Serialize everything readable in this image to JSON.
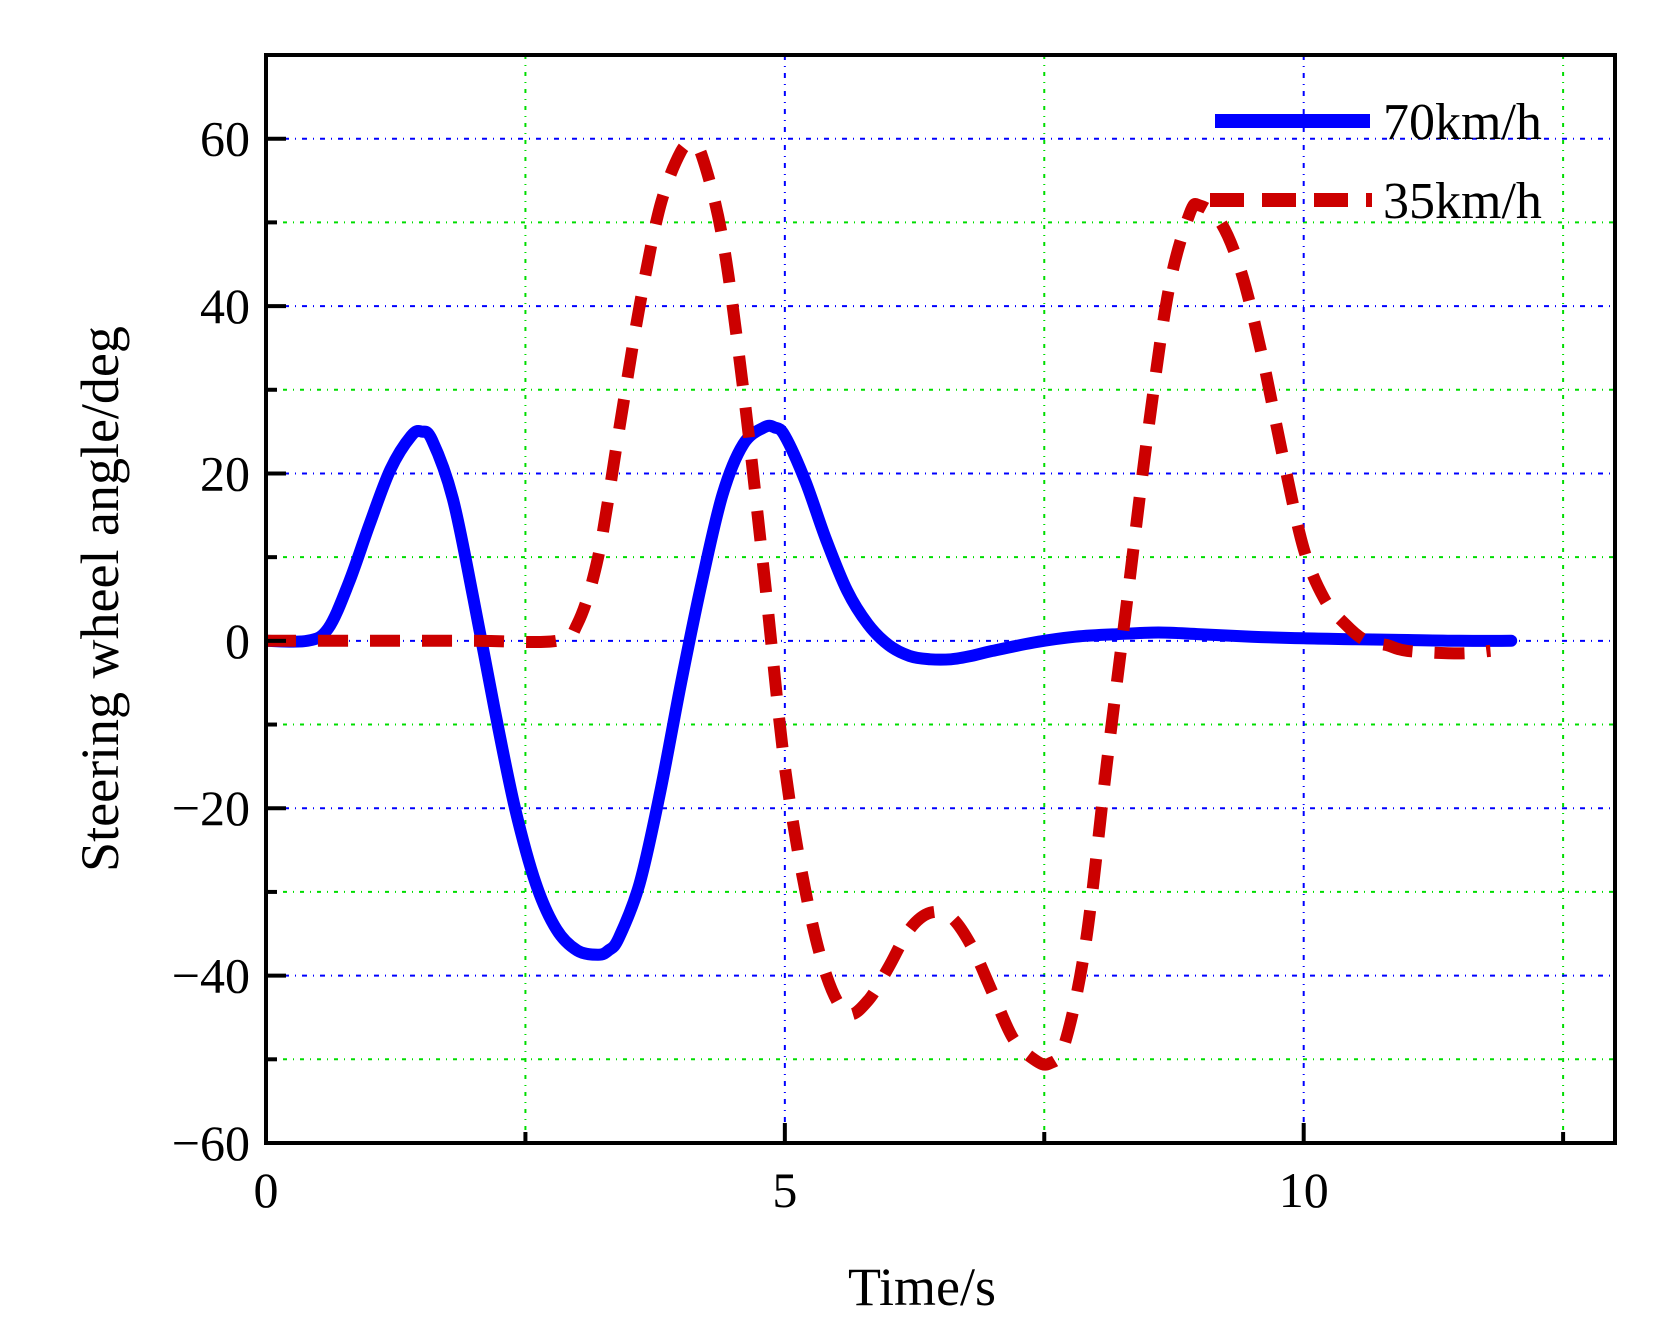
{
  "chart_data": {
    "type": "line",
    "title": "",
    "xlabel": "Time/s",
    "ylabel": "Steering wheel angle/deg",
    "xlim": [
      0,
      13
    ],
    "ylim": [
      -60,
      70
    ],
    "x_major_ticks": [
      0,
      5,
      10
    ],
    "x_tick_labels": [
      "0",
      "5",
      "10"
    ],
    "x_minor_ticks": [
      2.5,
      7.5,
      12.5
    ],
    "y_major_ticks": [
      -60,
      -40,
      -20,
      0,
      20,
      40,
      60
    ],
    "y_tick_labels": [
      "−60",
      "−40",
      "−20",
      "0",
      "20",
      "40",
      "60"
    ],
    "y_minor_ticks": [
      -50,
      -30,
      -10,
      10,
      30,
      50
    ],
    "grid": true,
    "legend_position": "top-right",
    "series": [
      {
        "name": "70km/h",
        "style": "solid",
        "color": "#0000ff",
        "x": [
          0,
          0.4,
          0.6,
          0.8,
          1.0,
          1.2,
          1.4,
          1.5,
          1.6,
          1.8,
          2.0,
          2.2,
          2.4,
          2.6,
          2.8,
          3.0,
          3.2,
          3.3,
          3.4,
          3.6,
          3.8,
          4.0,
          4.2,
          4.4,
          4.6,
          4.8,
          4.9,
          5.0,
          5.2,
          5.4,
          5.6,
          5.8,
          6.0,
          6.2,
          6.4,
          6.6,
          6.8,
          7.0,
          7.4,
          7.8,
          8.2,
          8.6,
          9.0,
          9.5,
          10.0,
          10.5,
          11.0,
          11.5,
          12.0
        ],
        "y": [
          0,
          0,
          1.5,
          7,
          14,
          20.5,
          24.5,
          25,
          24,
          17,
          5,
          -8,
          -20,
          -29,
          -34.5,
          -37,
          -37.5,
          -37,
          -35.5,
          -29,
          -18,
          -5,
          7,
          17.5,
          23.5,
          25.5,
          25.5,
          24.5,
          19,
          12,
          6,
          2,
          -0.5,
          -1.8,
          -2.2,
          -2.2,
          -1.8,
          -1.2,
          -0.2,
          0.5,
          0.8,
          1.0,
          0.8,
          0.5,
          0.3,
          0.2,
          0.1,
          0,
          0
        ]
      },
      {
        "name": "35km/h",
        "style": "dashed",
        "color": "#cc0000",
        "x": [
          0,
          1.0,
          2.0,
          2.8,
          3.0,
          3.2,
          3.4,
          3.6,
          3.8,
          4.0,
          4.1,
          4.2,
          4.4,
          4.6,
          4.8,
          5.0,
          5.2,
          5.4,
          5.6,
          5.8,
          6.0,
          6.2,
          6.4,
          6.6,
          6.8,
          7.0,
          7.2,
          7.4,
          7.55,
          7.7,
          7.9,
          8.1,
          8.3,
          8.5,
          8.7,
          8.9,
          9.0,
          9.2,
          9.4,
          9.6,
          9.8,
          10.0,
          10.2,
          10.4,
          10.6,
          10.8,
          11.0,
          11.5,
          11.8
        ],
        "y": [
          0,
          0,
          0,
          0,
          2,
          10,
          25,
          40,
          52,
          58.5,
          59,
          58,
          48,
          30,
          8,
          -15,
          -30,
          -40,
          -44.5,
          -43,
          -39,
          -34.5,
          -32.5,
          -33,
          -36.5,
          -42,
          -47.5,
          -50,
          -50.5,
          -48,
          -36,
          -15,
          5,
          25,
          42,
          51,
          52,
          50,
          44,
          34,
          22,
          11,
          5,
          2,
          0,
          -0.5,
          -1.2,
          -1.5,
          -1.2
        ]
      }
    ]
  }
}
